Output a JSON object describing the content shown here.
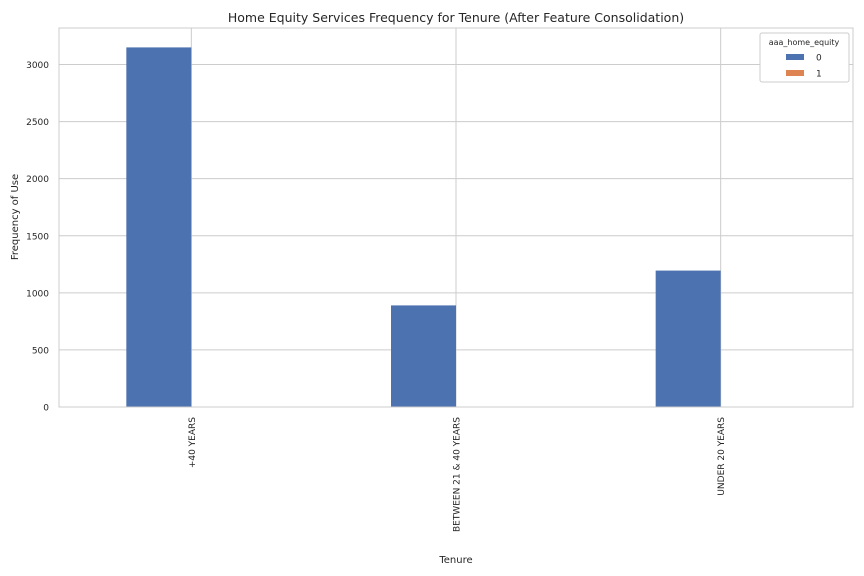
{
  "chart_data": {
    "type": "bar",
    "title": "Home Equity Services Frequency for Tenure (After Feature Consolidation)",
    "xlabel": "Tenure",
    "ylabel": "Frequency of Use",
    "categories": [
      "+40 YEARS",
      "BETWEEN 21 & 40 YEARS",
      "UNDER 20 YEARS"
    ],
    "series": [
      {
        "name": "0",
        "values": [
          3150,
          890,
          1195
        ],
        "color": "#4c72b0"
      },
      {
        "name": "1",
        "values": [
          0,
          0,
          0
        ],
        "color": "#dd8452"
      }
    ],
    "ylim": [
      0,
      3320
    ],
    "yticks": [
      0,
      500,
      1000,
      1500,
      2000,
      2500,
      3000
    ],
    "grid": true,
    "legend": {
      "title": "aaa_home_equity",
      "placement": "top-right"
    },
    "x_tick_rotation": "vertical"
  }
}
